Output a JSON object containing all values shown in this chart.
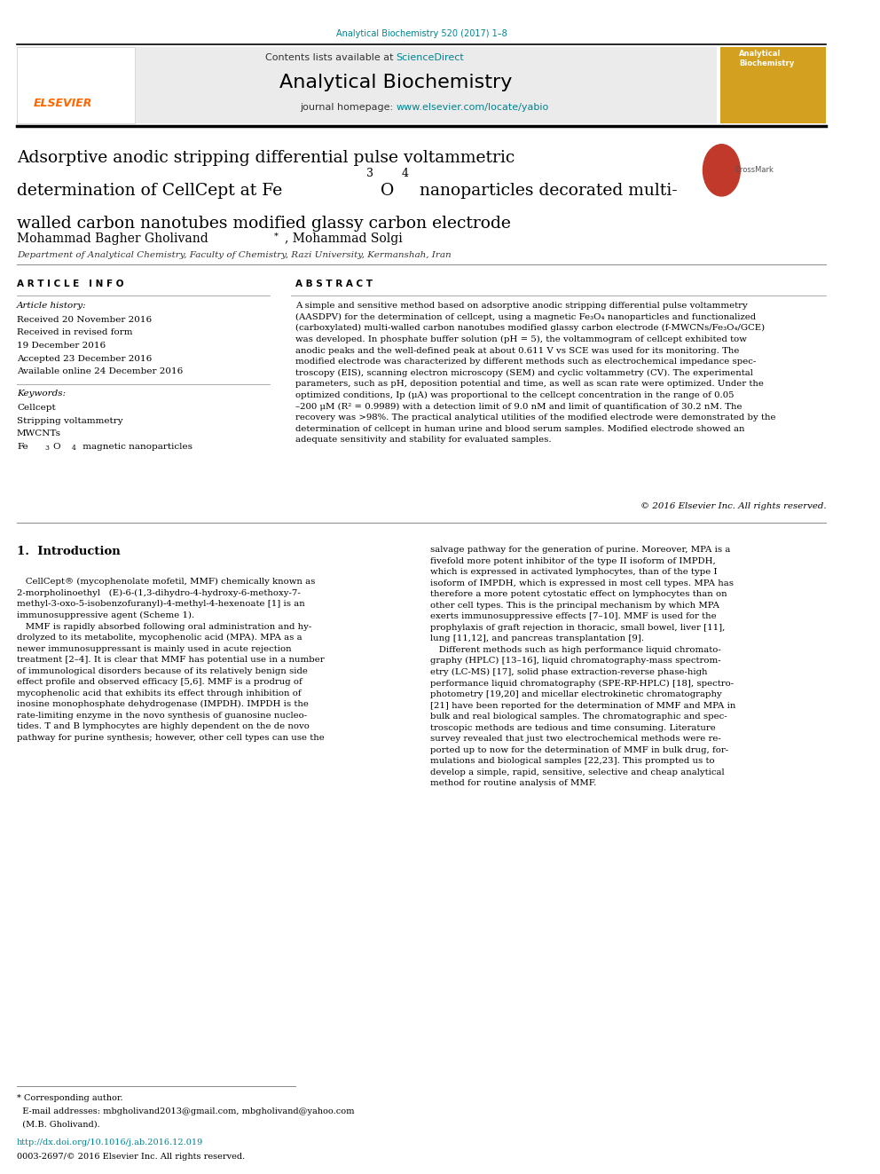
{
  "page_width": 9.92,
  "page_height": 13.23,
  "bg_color": "#ffffff",
  "journal_ref": "Analytical Biochemistry 520 (2017) 1–8",
  "journal_ref_color": "#00838f",
  "sciencedirect_color": "#00838f",
  "journal_name": "Analytical Biochemistry",
  "journal_url": "www.elsevier.com/locate/yabio",
  "journal_url_color": "#00838f",
  "elsevier_color": "#ff6600",
  "affiliation": "Department of Analytical Chemistry, Faculty of Chemistry, Razi University, Kermanshah, Iran",
  "doi_color": "#00838f",
  "text_color": "#000000",
  "small_text_color": "#333333"
}
